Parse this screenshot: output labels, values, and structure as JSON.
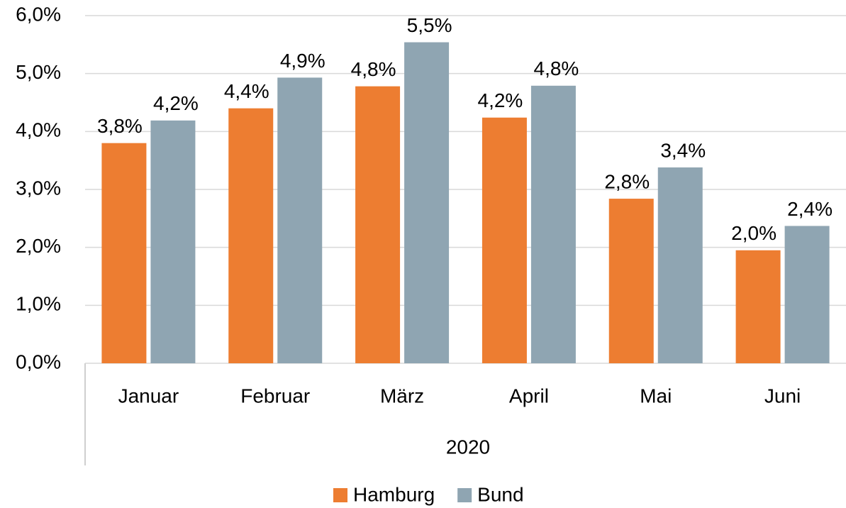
{
  "chart_data": {
    "type": "bar",
    "categories": [
      "Januar",
      "Februar",
      "März",
      "April",
      "Mai",
      "Juni"
    ],
    "category_group": "2020",
    "series": [
      {
        "name": "Hamburg",
        "color": "#ED7D31",
        "values": [
          3.8,
          4.4,
          4.78,
          4.24,
          2.84,
          1.95
        ],
        "value_labels": [
          "3,8%",
          "4,4%",
          "4,8%",
          "4,2%",
          "2,8%",
          "2,0%"
        ]
      },
      {
        "name": "Bund",
        "color": "#8FA5B2",
        "values": [
          4.19,
          4.93,
          5.54,
          4.79,
          3.38,
          2.37
        ],
        "value_labels": [
          "4,2%",
          "4,9%",
          "5,5%",
          "4,8%",
          "3,4%",
          "2,4%"
        ]
      }
    ],
    "ylim": [
      0,
      6
    ],
    "yticks": [
      {
        "value": 0,
        "label": "0,0%"
      },
      {
        "value": 1,
        "label": "1,0%"
      },
      {
        "value": 2,
        "label": "2,0%"
      },
      {
        "value": 3,
        "label": "3,0%"
      },
      {
        "value": 4,
        "label": "4,0%"
      },
      {
        "value": 5,
        "label": "5,0%"
      },
      {
        "value": 6,
        "label": "6,0%"
      }
    ],
    "grid": true,
    "legend": "bottom"
  }
}
